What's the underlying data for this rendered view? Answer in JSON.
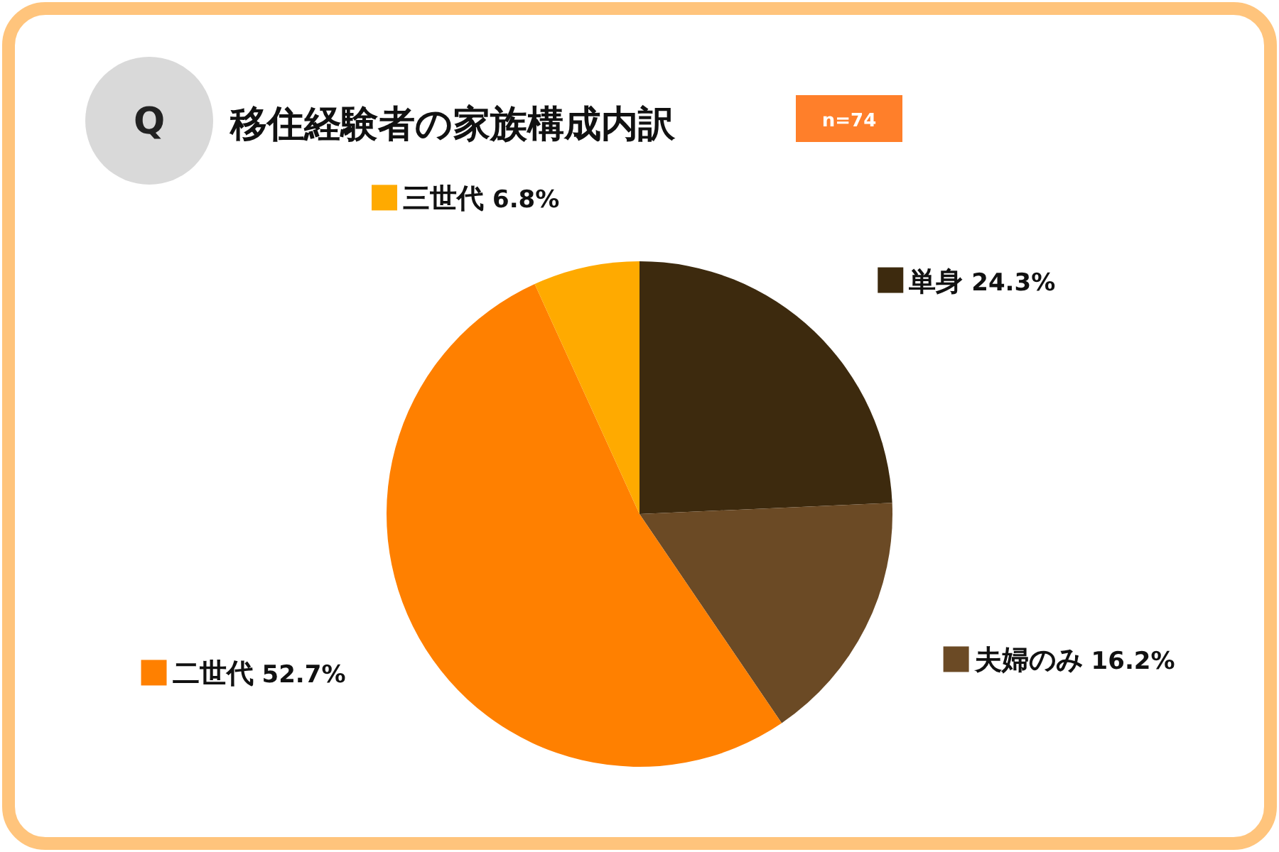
{
  "chart_data": {
    "type": "pie",
    "title": "移住経験者の家族構成内訳",
    "annotations": [
      "Q",
      "n=74"
    ],
    "categories": [
      "単身",
      "夫婦のみ",
      "二世代",
      "三世代"
    ],
    "values": [
      24.3,
      16.2,
      52.7,
      6.8
    ],
    "value_labels": [
      "24.3%",
      "16.2%",
      "52.7%",
      "6.8%"
    ],
    "colors": [
      "#3d2a0e",
      "#6b4a25",
      "#ff8000",
      "#ffaa00"
    ],
    "legend": "top left"
  }
}
